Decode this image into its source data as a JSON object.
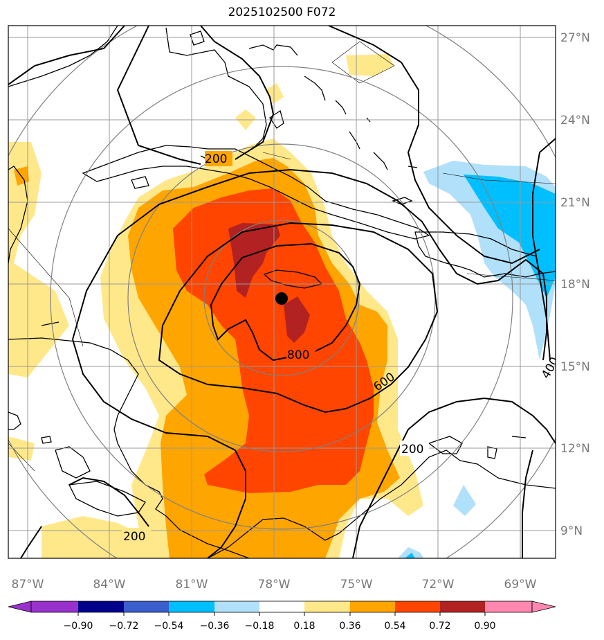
{
  "title": "2025102500 F072",
  "map": {
    "lon_ticks": [
      "87°W",
      "84°W",
      "81°W",
      "78°W",
      "75°W",
      "72°W",
      "69°W"
    ],
    "lat_ticks": [
      "27°N",
      "24°N",
      "21°N",
      "18°N",
      "15°N",
      "12°N",
      "9°N"
    ],
    "contour_labels": [
      "200",
      "200",
      "200",
      "400",
      "600",
      "800"
    ],
    "center_marker": {
      "lat": 17.4,
      "lon": -77.8
    }
  },
  "colorbar": {
    "ticks": [
      "−0.90",
      "−0.72",
      "−0.54",
      "−0.36",
      "−0.18",
      "0.18",
      "0.36",
      "0.54",
      "0.72",
      "0.90"
    ],
    "colors": [
      "#9932cc",
      "#00008b",
      "#3a5fcd",
      "#00bfff",
      "#b0e0fa",
      "#ffffff",
      "#ffe88a",
      "#ffa500",
      "#ff4500",
      "#b22222",
      "#ff88b0"
    ]
  }
}
